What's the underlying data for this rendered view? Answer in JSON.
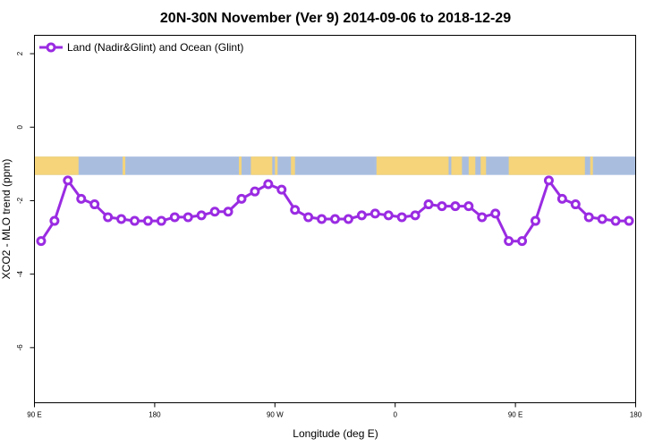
{
  "chart_data": {
    "type": "line",
    "title": "20N-30N November (Ver 9)   2014-09-06 to 2018-12-29",
    "xlabel": "Longitude (deg E)",
    "ylabel": "XCO2 - MLO trend (ppm)",
    "xlim": [
      90,
      540
    ],
    "ylim": [
      -7.5,
      2.5
    ],
    "x_ticks": [
      {
        "value": 90,
        "label": "90 E"
      },
      {
        "value": 180,
        "label": "180"
      },
      {
        "value": 270,
        "label": "90 W"
      },
      {
        "value": 360,
        "label": "0"
      },
      {
        "value": 450,
        "label": "90 E"
      },
      {
        "value": 540,
        "label": "180"
      }
    ],
    "y_ticks": [
      {
        "value": 2,
        "label": "2"
      },
      {
        "value": 0,
        "label": "0"
      },
      {
        "value": -2,
        "label": "-2"
      },
      {
        "value": -4,
        "label": "-4"
      },
      {
        "value": -6,
        "label": "-6"
      }
    ],
    "legend_position": "top-left",
    "map_strip": {
      "ymin": -1.3,
      "ymax": -0.8,
      "ocean_color": "#a9bedf",
      "land_color": "#f5d47a",
      "land_ranges": [
        [
          90,
          123
        ],
        [
          156,
          158
        ],
        [
          243,
          245
        ],
        [
          252,
          268
        ],
        [
          270,
          272
        ],
        [
          282,
          285
        ],
        [
          346,
          400
        ],
        [
          402,
          410
        ],
        [
          415,
          420
        ],
        [
          424,
          428
        ],
        [
          445,
          502
        ],
        [
          506,
          508
        ]
      ]
    },
    "series": [
      {
        "name": "Land (Nadir&Glint) and Ocean (Glint)",
        "color": "#9a2be2",
        "x": [
          95,
          105,
          115,
          125,
          135,
          145,
          155,
          165,
          175,
          185,
          195,
          205,
          215,
          225,
          235,
          245,
          255,
          265,
          275,
          285,
          295,
          305,
          315,
          325,
          335,
          345,
          355,
          365,
          375,
          385,
          395,
          405,
          415,
          425,
          435,
          445,
          455,
          465,
          475,
          485,
          495,
          505,
          515,
          525,
          535
        ],
        "values": [
          -3.1,
          -2.55,
          -1.45,
          -1.95,
          -2.1,
          -2.45,
          -2.5,
          -2.55,
          -2.55,
          -2.55,
          -2.45,
          -2.45,
          -2.4,
          -2.3,
          -2.3,
          -1.95,
          -1.75,
          -1.55,
          -1.7,
          -2.25,
          -2.45,
          -2.5,
          -2.5,
          -2.5,
          -2.4,
          -2.35,
          -2.4,
          -2.45,
          -2.4,
          -2.1,
          -2.15,
          -2.15,
          -2.15,
          -2.45,
          -2.35,
          -3.1,
          -3.1,
          -2.55,
          -1.45,
          -1.95,
          -2.1,
          -2.45,
          -2.5,
          -2.55,
          -2.55
        ]
      }
    ]
  }
}
